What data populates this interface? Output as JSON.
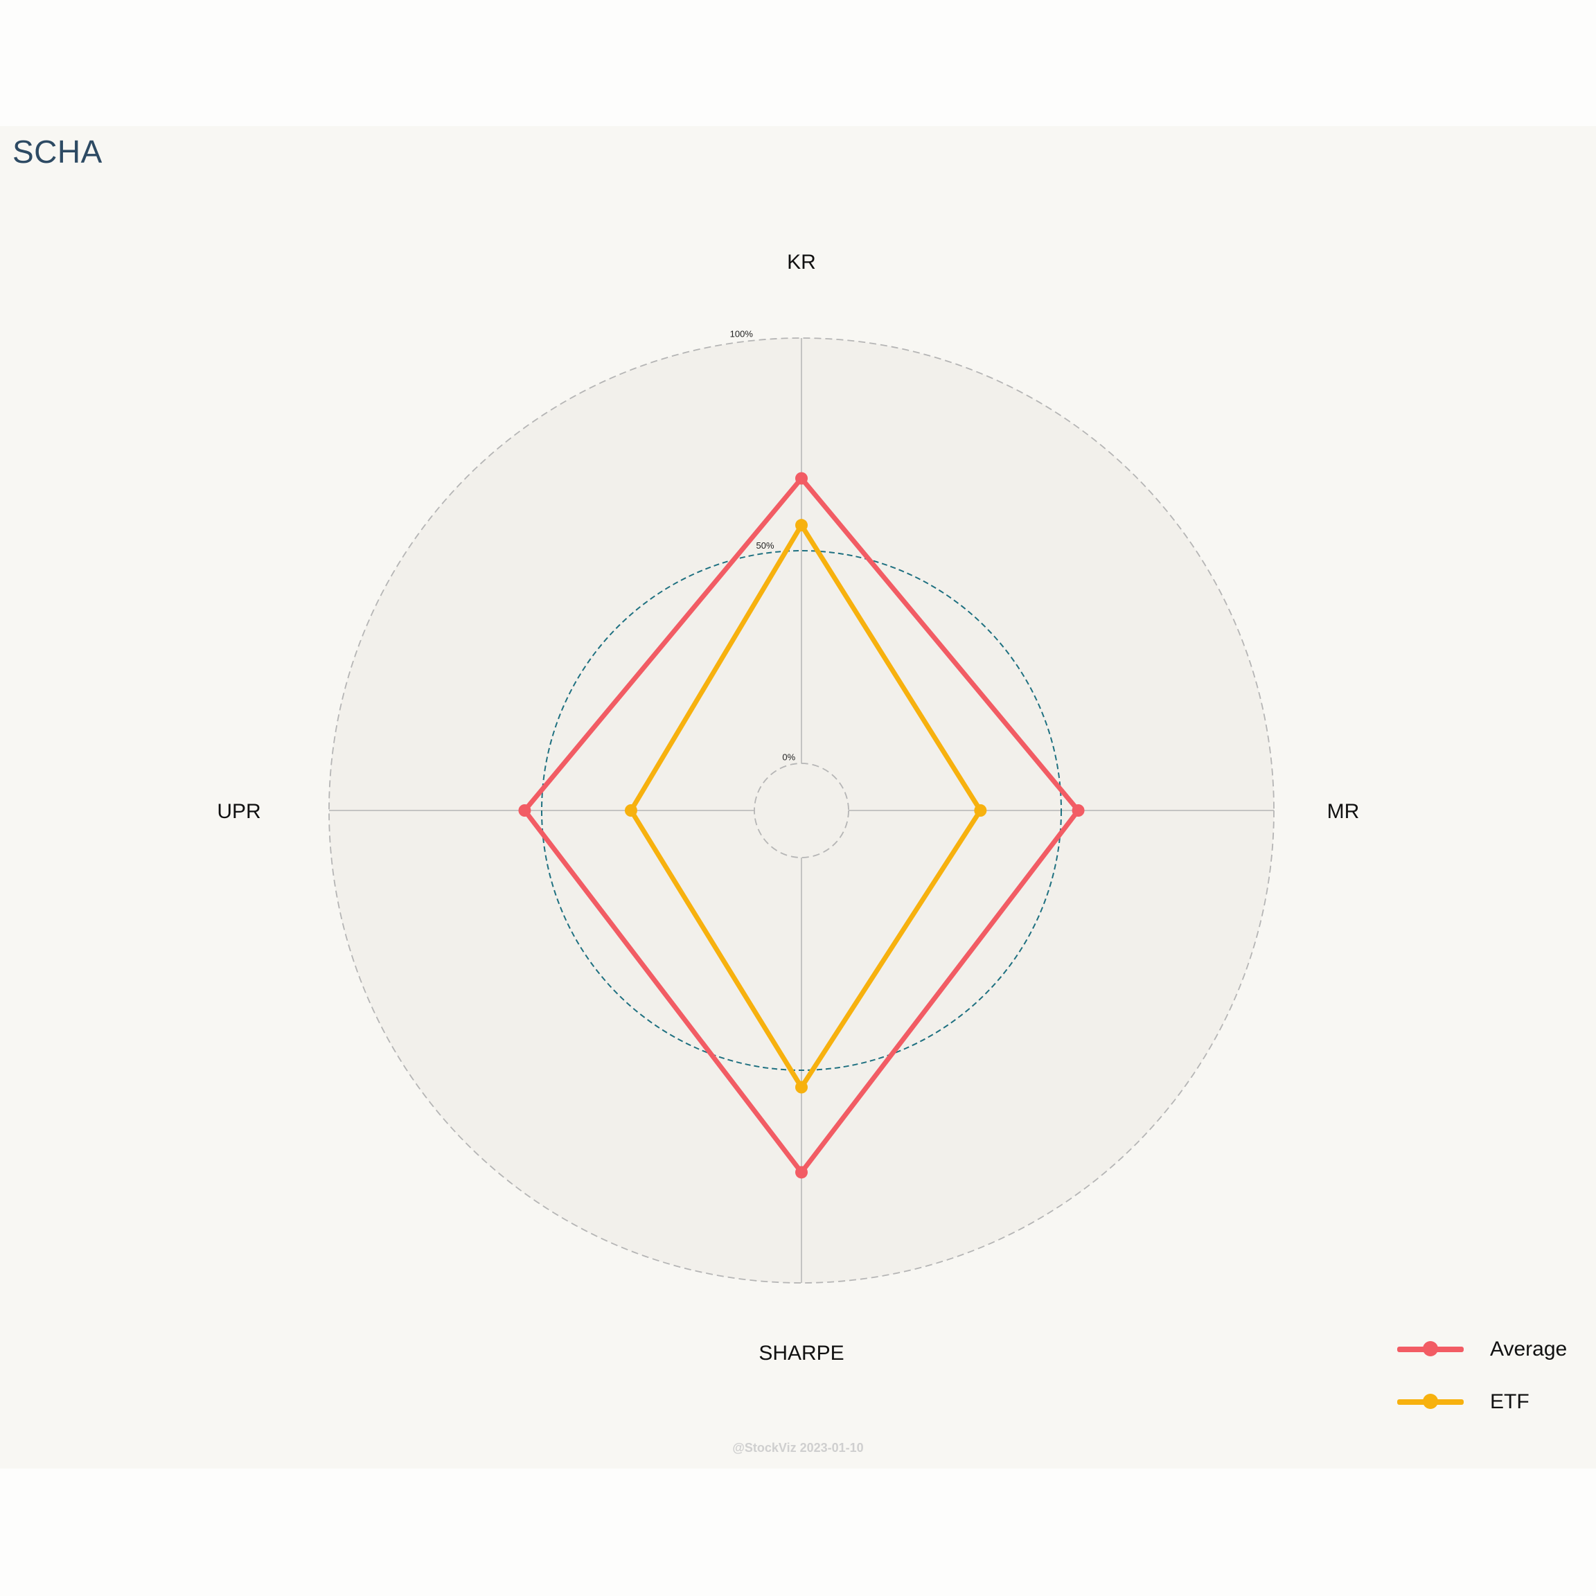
{
  "title": "SCHA",
  "watermark": "@StockViz 2023-01-10",
  "chart_data": {
    "type": "radar",
    "axes": [
      "KR",
      "MR",
      "SHARPE",
      "UPR"
    ],
    "rlim": [
      0,
      100
    ],
    "r_ticks": [
      {
        "value": 0,
        "label": "0%"
      },
      {
        "value": 50,
        "label": "50%"
      },
      {
        "value": 100,
        "label": "100%"
      }
    ],
    "grid": true,
    "legend_position": "bottom-right",
    "series": [
      {
        "name": "Average",
        "color": "#f25c64",
        "values": [
          67,
          54,
          74,
          54
        ]
      },
      {
        "name": "ETF",
        "color": "#f7b10e",
        "values": [
          56,
          31,
          54,
          29
        ]
      }
    ],
    "colors": {
      "plot_background": "#f2f0eb",
      "panel_background": "#f8f7f3",
      "grid": "#b5b5b5",
      "mid_ring": "#1e7080",
      "title": "#2d4a63"
    }
  }
}
